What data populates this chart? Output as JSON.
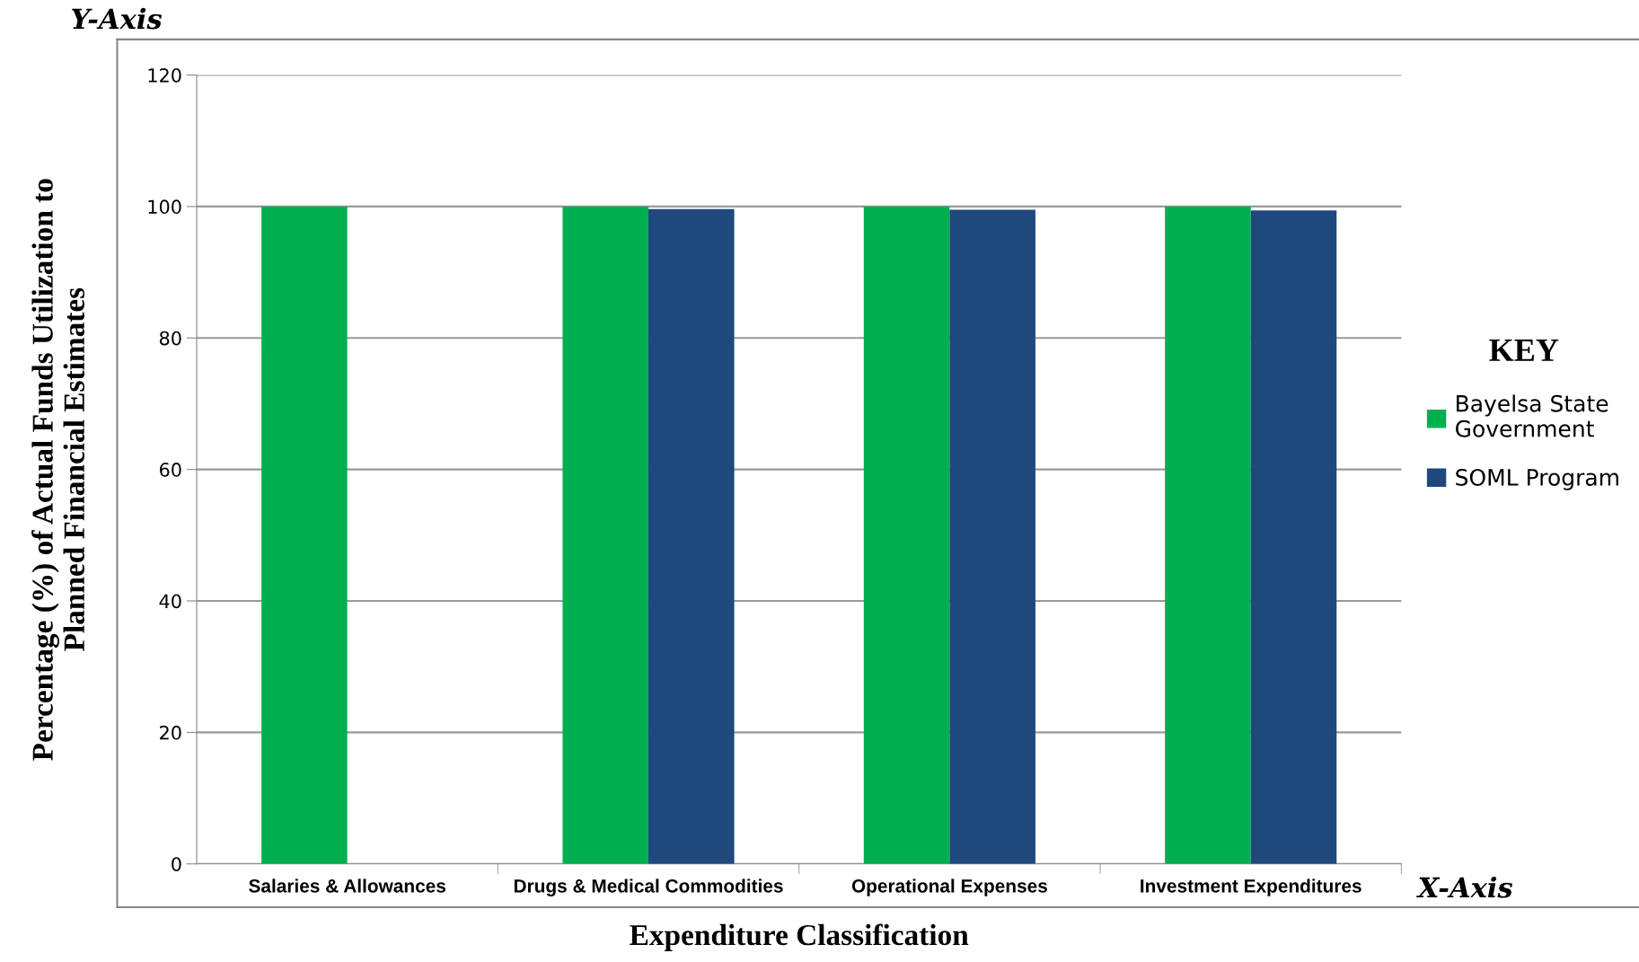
{
  "chart_data": {
    "type": "bar",
    "xlabel": "Expenditure Classification",
    "ylabel": "Percentage (%) of Actual Funds Utilization to\nPlanned Financial Estimates",
    "legend_title": "KEY",
    "categories": [
      "Salaries & Allowances",
      "Drugs & Medical Commodities",
      "Operational Expenses",
      "Investment Expenditures"
    ],
    "series": [
      {
        "name": "Bayelsa State\nGovernment",
        "color": "#00b050",
        "values": [
          100,
          100,
          100,
          100
        ]
      },
      {
        "name": "SOML Program",
        "color": "#1f497d",
        "values": [
          null,
          99.6,
          99.5,
          99.4
        ]
      }
    ],
    "ylim": [
      0,
      120
    ],
    "yticks": [
      0,
      20,
      40,
      60,
      80,
      100,
      120
    ],
    "grid": "y",
    "legend": "right",
    "annotations": [
      "Y-Axis",
      "X-Axis"
    ]
  }
}
